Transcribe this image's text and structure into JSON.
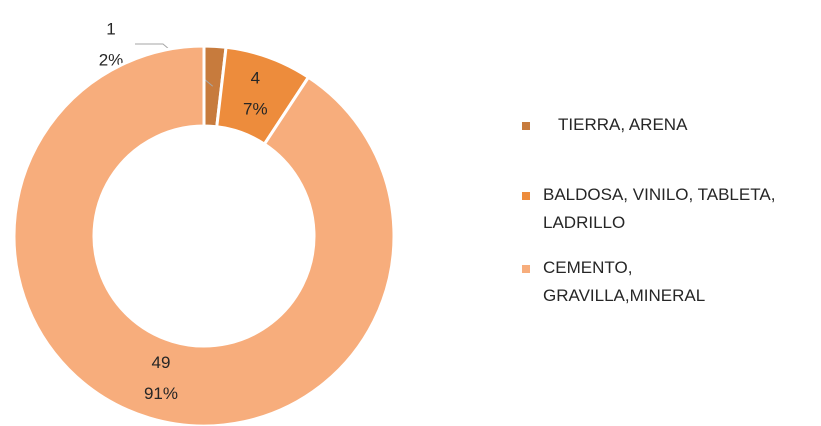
{
  "chart_data": {
    "type": "donut",
    "categories": [
      "TIERRA, ARENA",
      "BALDOSA, VINILO, TABLETA,\nLADRILLO",
      "CEMENTO,\nGRAVILLA,MINERAL"
    ],
    "values": [
      1,
      4,
      49
    ],
    "percent_labels": [
      "2%",
      "7%",
      "91%"
    ],
    "colors": [
      "#c77b3d",
      "#ed8c3c",
      "#f7ad7c"
    ],
    "legend": "right"
  }
}
